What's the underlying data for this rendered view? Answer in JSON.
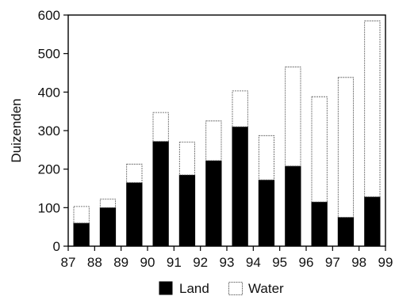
{
  "chart_data": {
    "type": "bar",
    "stacked": true,
    "title": "",
    "xlabel": "",
    "ylabel": "Duizenden",
    "ylim": [
      0,
      600
    ],
    "yticks": [
      "0",
      "100",
      "200",
      "300",
      "400",
      "500",
      "600"
    ],
    "xticks": [
      "87",
      "88",
      "89",
      "90",
      "91",
      "92",
      "93",
      "94",
      "95",
      "96",
      "97",
      "98",
      "99"
    ],
    "x": [
      87.5,
      88.5,
      89.5,
      90.5,
      91.5,
      92.5,
      93.5,
      94.5,
      95.5,
      96.5,
      97.5,
      98.5
    ],
    "series": [
      {
        "name": "Land",
        "color": "#000000",
        "values": [
          60,
          100,
          165,
          272,
          185,
          222,
          310,
          172,
          208,
          115,
          75,
          128
        ]
      },
      {
        "name": "Water",
        "color": "#ffffff",
        "values": [
          43,
          22,
          48,
          75,
          85,
          103,
          93,
          115,
          257,
          273,
          363,
          457
        ]
      }
    ],
    "grid": false,
    "legend_position": "bottom-center"
  }
}
